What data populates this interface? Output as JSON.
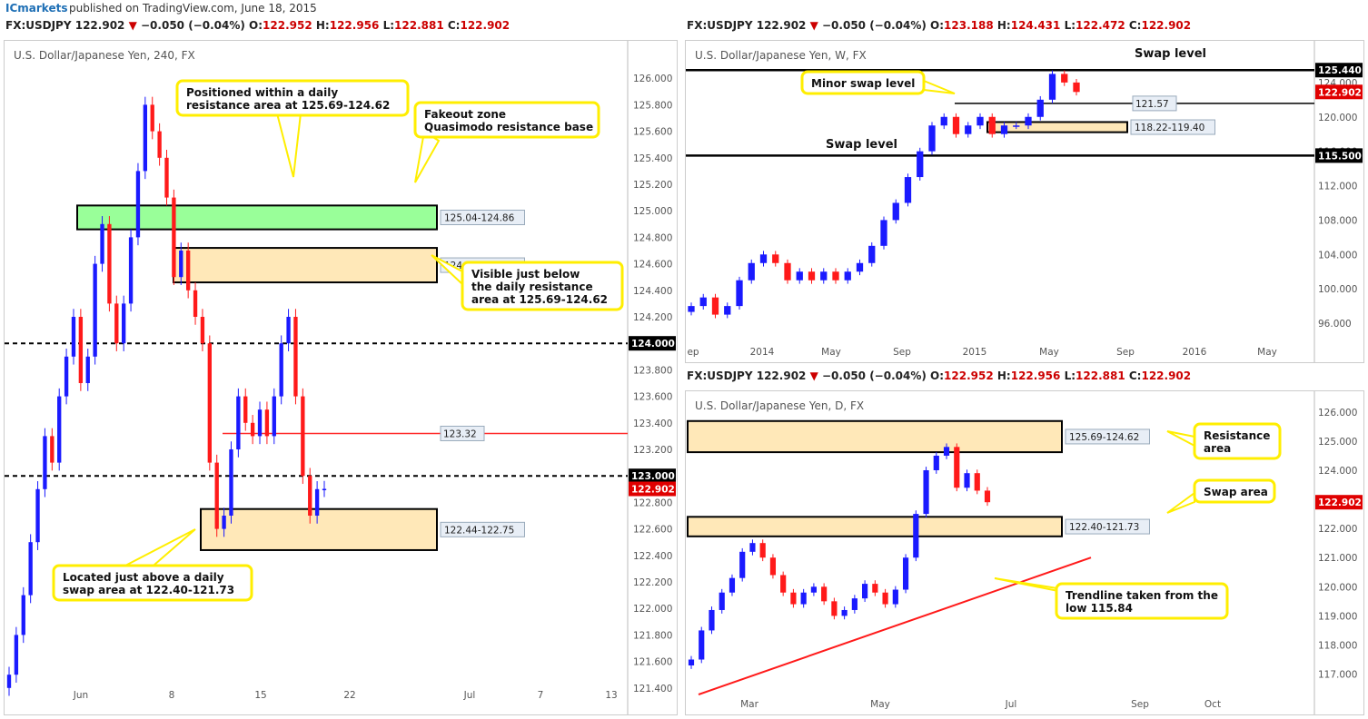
{
  "brand": "ICmarkets",
  "published": "published on TradingView.com, June 18, 2015",
  "headers": {
    "left": {
      "sym": "FX:USDJPY",
      "last": "122.902",
      "arrow": "▼",
      "chg": "−0.050 (−0.04%)",
      "o": "122.952",
      "h": "122.956",
      "l": "122.881",
      "c": "122.902"
    },
    "weekly": {
      "sym": "FX:USDJPY",
      "last": "122.902",
      "arrow": "▼",
      "chg": "−0.050 (−0.04%)",
      "o": "123.188",
      "h": "124.431",
      "l": "122.472",
      "c": "122.902"
    },
    "daily": {
      "sym": "FX:USDJPY",
      "last": "122.902",
      "arrow": "▼",
      "chg": "−0.050 (−0.04%)",
      "o": "122.952",
      "h": "122.956",
      "l": "122.881",
      "c": "122.902"
    }
  },
  "ohlc_labels": {
    "o": "O:",
    "h": "H:",
    "l": "L:",
    "c": "C:"
  },
  "colors": {
    "up": "#1a1aff",
    "down": "#ff1a1a",
    "zone_fill": "#ffe8b8",
    "green_fill": "#99ff99",
    "callout_border": "#ffee00",
    "price_tag": "#e00000"
  },
  "chart_data": [
    {
      "id": "h4",
      "type": "candlestick",
      "title": "U.S. Dollar/Japanese Yen, 240, FX",
      "ylim": [
        121.2,
        126.2
      ],
      "yticks": [
        "126.000",
        "125.800",
        "125.600",
        "125.400",
        "125.200",
        "125.000",
        "124.800",
        "124.600",
        "124.400",
        "124.200",
        "124.000",
        "123.800",
        "123.600",
        "123.400",
        "123.200",
        "123.000",
        "122.800",
        "122.600",
        "122.400",
        "122.200",
        "122.000",
        "121.800",
        "121.600",
        "121.400"
      ],
      "xticks": [
        "Jun",
        "8",
        "15",
        "22",
        "Jul",
        "7",
        "13"
      ],
      "close_series": [
        121.5,
        121.8,
        122.1,
        122.5,
        122.9,
        123.3,
        123.1,
        123.6,
        123.9,
        124.2,
        123.7,
        123.9,
        124.6,
        124.9,
        124.3,
        124.0,
        124.3,
        124.8,
        125.3,
        125.8,
        125.6,
        125.4,
        125.1,
        124.5,
        124.7,
        124.4,
        124.2,
        124.0,
        123.1,
        122.6,
        122.7,
        123.2,
        123.6,
        123.4,
        123.3,
        123.5,
        123.3,
        123.6,
        124.0,
        124.2,
        123.6,
        123.0,
        122.7,
        122.9,
        122.902
      ],
      "levels": [
        {
          "label": "124.000",
          "value": 124.0,
          "style": "dashed"
        },
        {
          "label": "123.000",
          "value": 123.0,
          "style": "dashed"
        },
        {
          "label": "123.32",
          "value": 123.32,
          "style": "red"
        }
      ],
      "zones": [
        {
          "label": "125.04-124.86",
          "top": 125.04,
          "bottom": 124.86,
          "fill": "green"
        },
        {
          "label": "124.72-124.46",
          "top": 124.72,
          "bottom": 124.46,
          "fill": "tan"
        },
        {
          "label": "122.44-122.75",
          "top": 122.75,
          "bottom": 122.44,
          "fill": "tan"
        }
      ],
      "annotations": [
        {
          "id": "a1",
          "lines": [
            "Positioned within a daily",
            "resistance area at 125.69-124.62"
          ]
        },
        {
          "id": "a2",
          "lines": [
            "Fakeout zone",
            "Quasimodo resistance base"
          ]
        },
        {
          "id": "a3",
          "lines": [
            "Visible just below",
            "the daily resistance",
            "area at 125.69-124.62"
          ]
        },
        {
          "id": "a4",
          "lines": [
            "Located just above a daily",
            "swap area at 122.40-121.73"
          ]
        }
      ],
      "last_price": "122.902"
    },
    {
      "id": "weekly",
      "type": "candlestick",
      "title": "U.S. Dollar/Japanese Yen, W, FX",
      "ylim": [
        94,
        128
      ],
      "yticks": [
        "124.000",
        "120.000",
        "116.000",
        "112.000",
        "108.000",
        "104.000",
        "100.000",
        "96.000"
      ],
      "xticks": [
        "ep",
        "2014",
        "May",
        "Sep",
        "2015",
        "May",
        "Sep",
        "2016",
        "May"
      ],
      "close_series": [
        98,
        99,
        97,
        98,
        101,
        103,
        104,
        103,
        101,
        102,
        101,
        102,
        101,
        102,
        103,
        105,
        108,
        110,
        113,
        116,
        119,
        120,
        118,
        119,
        120,
        118,
        119,
        119,
        120,
        122,
        125,
        124,
        122.9
      ],
      "levels": [
        {
          "label": "125.440",
          "value": 125.44,
          "style": "solid-thick",
          "tag": "dark"
        },
        {
          "label": "121.57",
          "value": 121.57,
          "style": "solid"
        },
        {
          "label": "115.500",
          "value": 115.5,
          "style": "solid-thick",
          "tag": "dark"
        }
      ],
      "zones": [
        {
          "label": "118.22-119.40",
          "top": 119.4,
          "bottom": 118.22,
          "fill": "tan"
        }
      ],
      "text_labels": [
        "Swap level",
        "Swap level"
      ],
      "annotations": [
        {
          "id": "w1",
          "lines": [
            "Minor swap level"
          ]
        }
      ],
      "last_price": "122.902"
    },
    {
      "id": "daily",
      "type": "candlestick",
      "title": "U.S. Dollar/Japanese Yen, D, FX",
      "ylim": [
        116.3,
        126.4
      ],
      "yticks": [
        "126.000",
        "125.000",
        "124.000",
        "123.000",
        "122.000",
        "121.000",
        "120.000",
        "119.000",
        "118.000",
        "117.000"
      ],
      "xticks": [
        "Mar",
        "May",
        "Jul",
        "Sep",
        "Oct"
      ],
      "close_series": [
        117.5,
        118.5,
        119.2,
        119.8,
        120.3,
        121.2,
        121.5,
        121.0,
        120.4,
        119.8,
        119.4,
        119.8,
        120.0,
        119.5,
        119.0,
        119.2,
        119.6,
        120.1,
        119.8,
        119.4,
        119.9,
        121.0,
        122.5,
        124.0,
        124.5,
        124.8,
        123.4,
        123.9,
        123.3,
        122.902
      ],
      "levels": [],
      "zones": [
        {
          "label": "125.69-124.62",
          "top": 125.69,
          "bottom": 124.62,
          "fill": "tan"
        },
        {
          "label": "122.40-121.73",
          "top": 122.4,
          "bottom": 121.73,
          "fill": "tan"
        }
      ],
      "trendline": {
        "from_value": 116.3,
        "to_value": 121.0
      },
      "annotations": [
        {
          "id": "d1",
          "lines": [
            "Resistance",
            "area"
          ]
        },
        {
          "id": "d2",
          "lines": [
            "Swap area"
          ]
        },
        {
          "id": "d3",
          "lines": [
            "Trendline taken from the",
            "low 115.84"
          ]
        }
      ],
      "last_price": "122.902"
    }
  ]
}
